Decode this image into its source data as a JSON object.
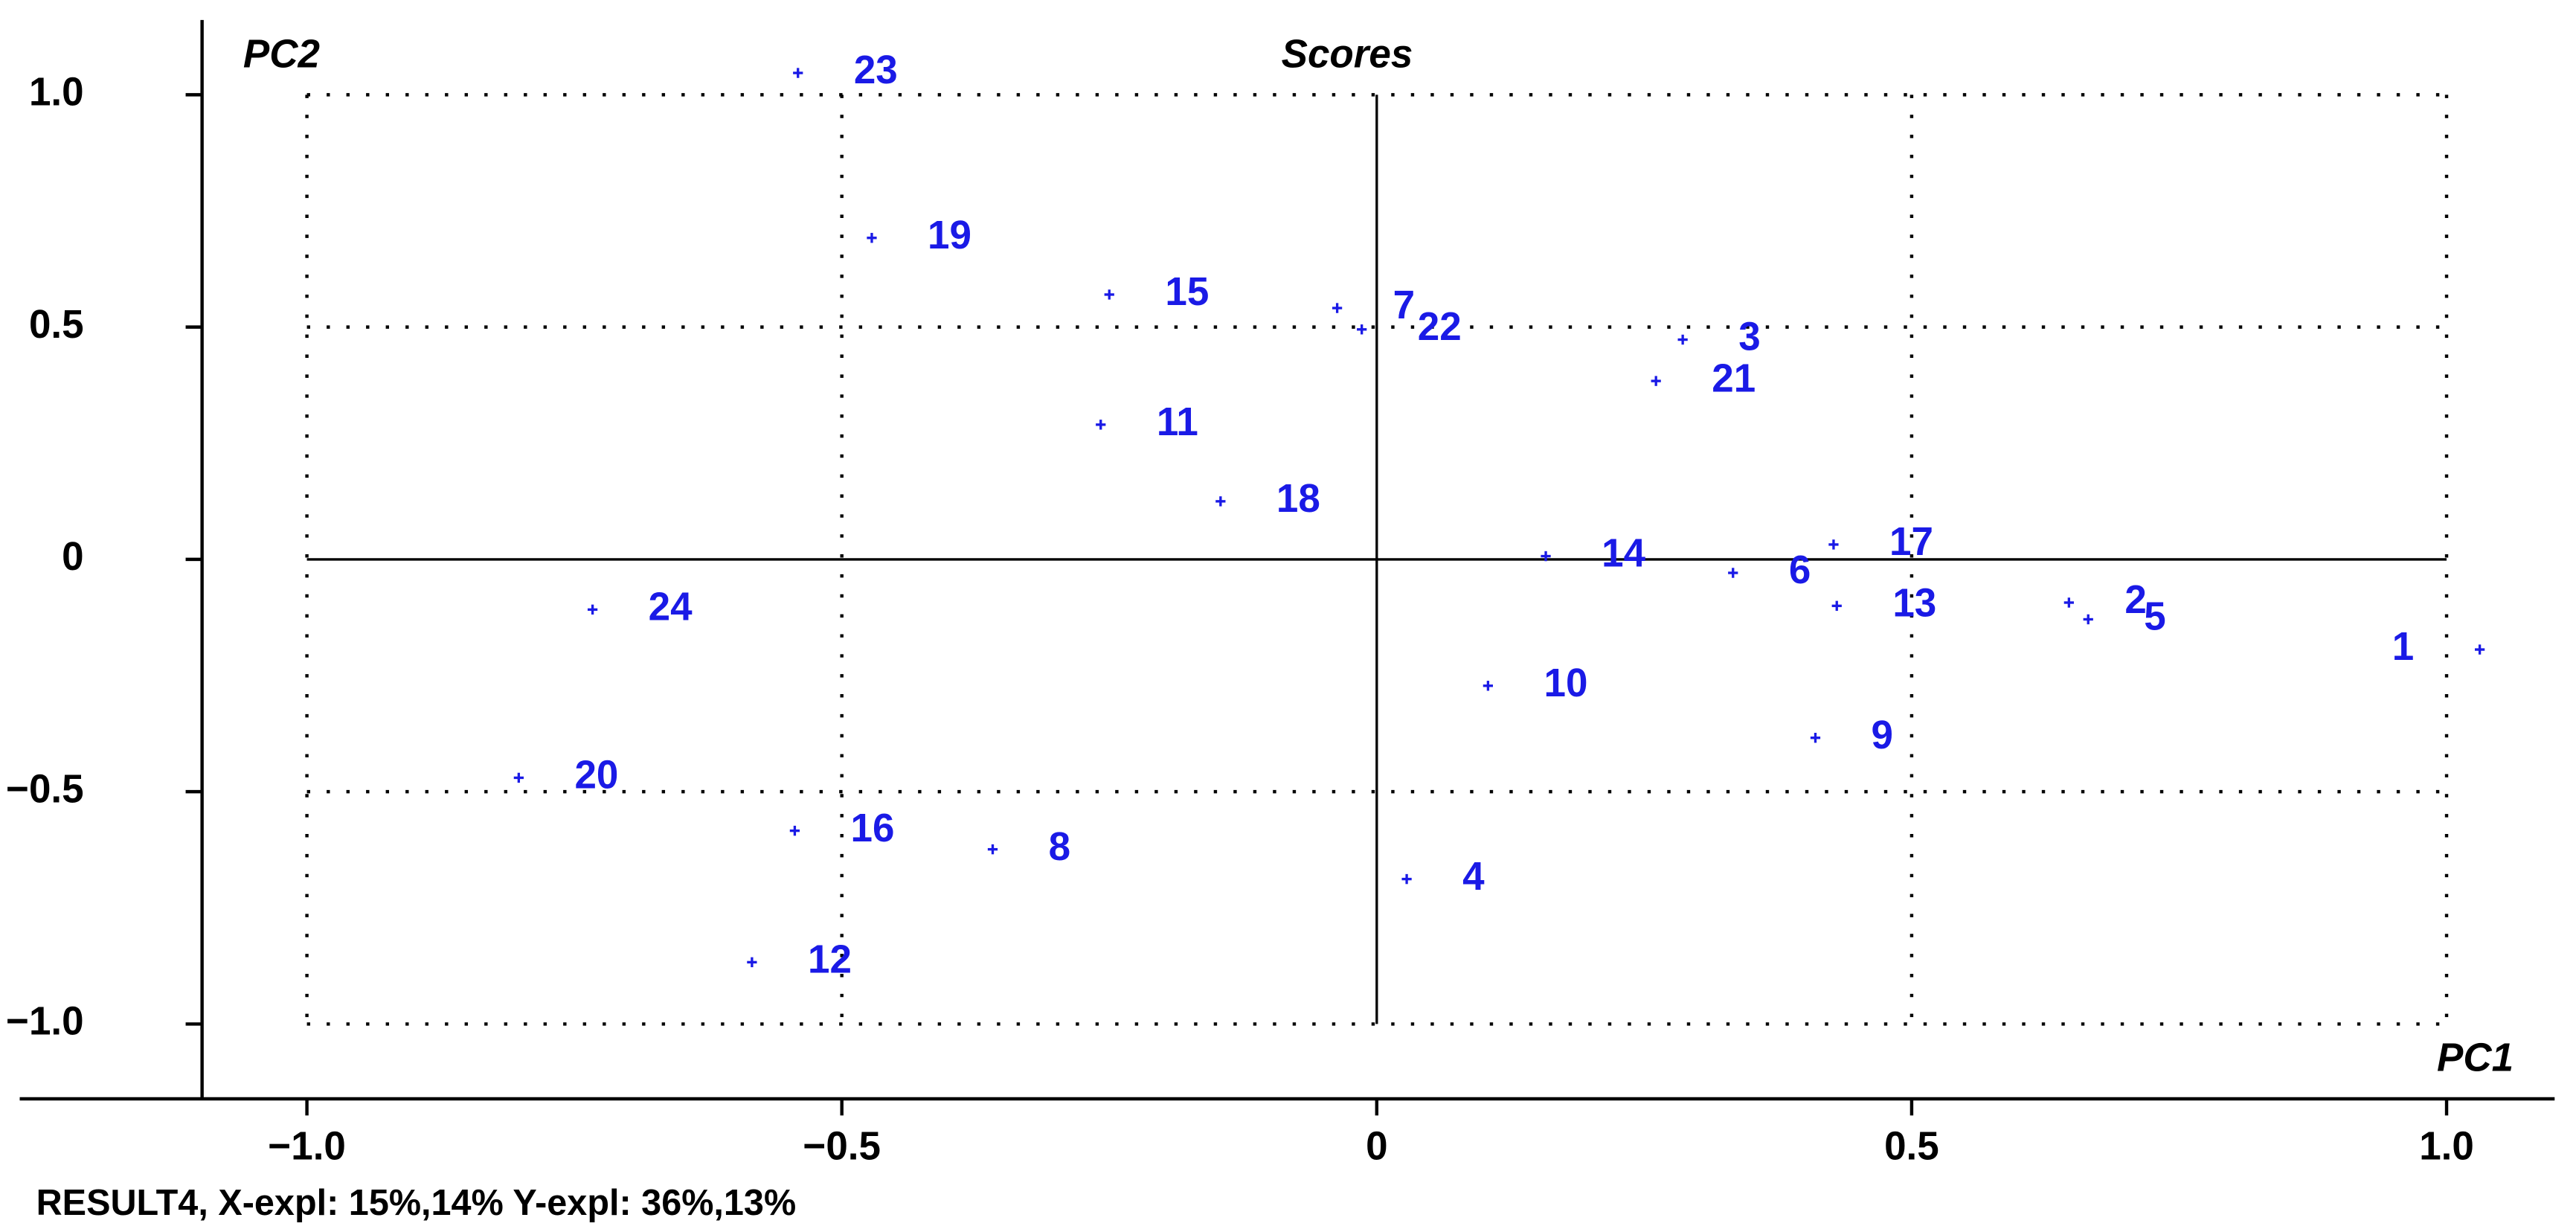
{
  "chart_data": {
    "type": "scatter",
    "title": "Scores",
    "x_label": "PC1",
    "y_label": "PC2",
    "footer": "RESULT4, X-expl: 15%,14%  Y-expl: 36%,13%",
    "labels": [
      "23",
      "19",
      "15",
      "7",
      "22",
      "3",
      "21",
      "11",
      "18",
      "14",
      "17",
      "6",
      "13",
      "2",
      "5",
      "1",
      "24",
      "10",
      "9",
      "20",
      "16",
      "8",
      "4",
      "12"
    ],
    "x": [
      -0.541,
      -0.472,
      -0.25,
      -0.037,
      -0.014,
      0.286,
      0.261,
      -0.258,
      -0.146,
      0.158,
      0.427,
      0.333,
      0.43,
      0.647,
      0.665,
      1.031,
      -0.733,
      0.104,
      0.41,
      -0.802,
      -0.544,
      -0.359,
      0.028,
      -0.584
    ],
    "values": [
      1.047,
      0.692,
      0.57,
      0.541,
      0.495,
      0.473,
      0.384,
      0.29,
      0.125,
      0.007,
      0.032,
      -0.029,
      -0.1,
      -0.093,
      -0.129,
      -0.194,
      -0.108,
      -0.272,
      -0.384,
      -0.47,
      -0.584,
      -0.624,
      -0.688,
      -0.867
    ],
    "color": "#1a1ae6",
    "xlim": [
      -1.098,
      1.101
    ],
    "ylim": [
      -1.161,
      1.161
    ],
    "xticks": [
      {
        "value": -1,
        "label": "−1.0"
      },
      {
        "value": -0.5,
        "label": "−0.5"
      },
      0,
      0.5,
      {
        "value": 1,
        "label": "1.0"
      }
    ],
    "yticks": [
      {
        "value": -1,
        "label": "−1.0"
      },
      {
        "value": -0.5,
        "label": "−0.5"
      },
      0,
      0.5,
      {
        "value": 1,
        "label": "1.0"
      }
    ],
    "grid": true
  }
}
